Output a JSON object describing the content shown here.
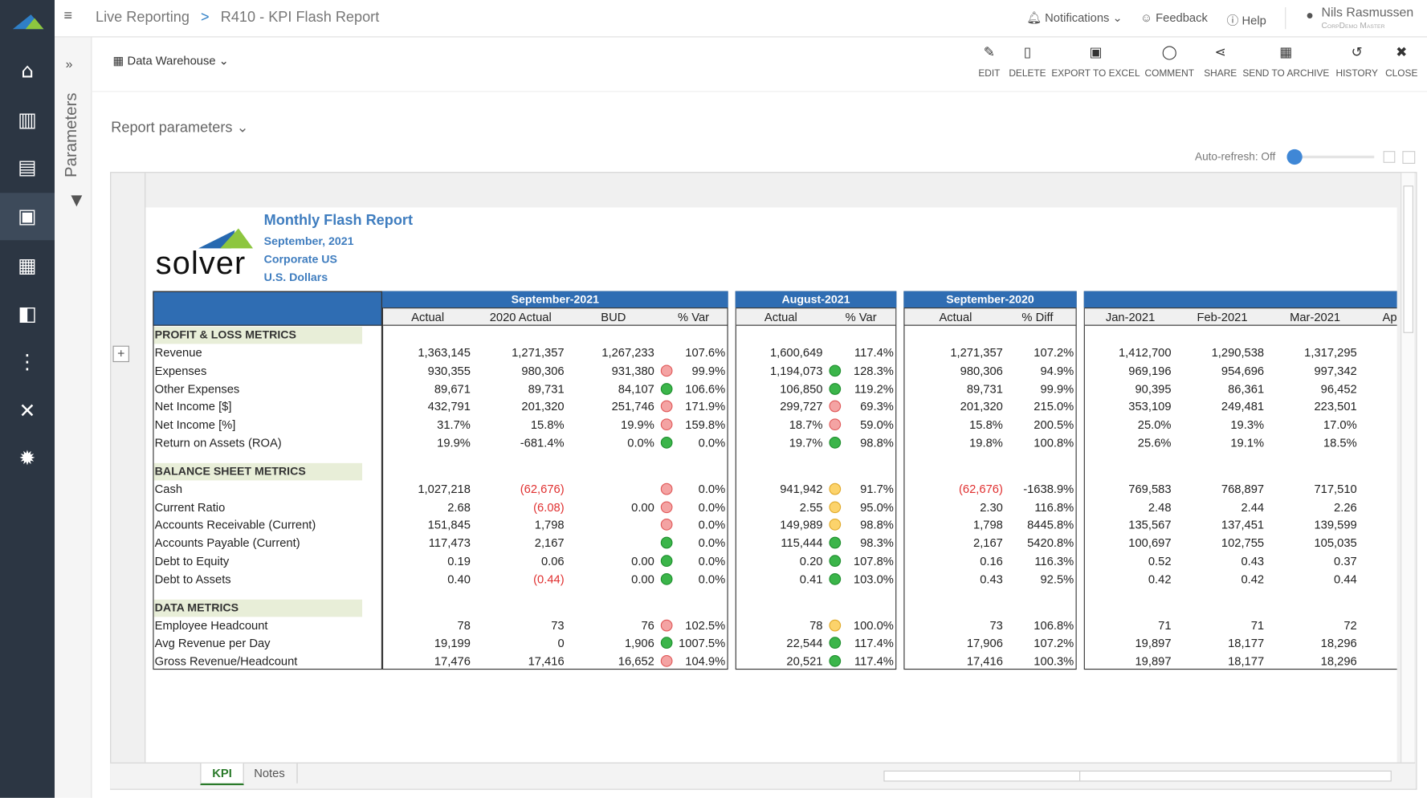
{
  "topbar": {
    "breadcrumb": [
      "Live Reporting",
      "R410 - KPI Flash Report"
    ],
    "separator": ">",
    "notifications": "Notifications",
    "feedback": "Feedback",
    "help": "Help",
    "user": "Nils Rasmussen",
    "user_role": "CorpDemo Master"
  },
  "toolbar": {
    "source": "Data Warehouse",
    "actions": [
      "EDIT",
      "DELETE",
      "EXPORT TO EXCEL",
      "COMMENT",
      "SHARE",
      "SEND TO ARCHIVE",
      "HISTORY",
      "CLOSE"
    ]
  },
  "parameters_panel": "Parameters",
  "report_parameters": "Report parameters",
  "auto_refresh": "Auto-refresh: Off",
  "report": {
    "logo": "solver",
    "title": "Monthly Flash Report",
    "subtitles": [
      "September, 2021",
      "Corporate US",
      "U.S. Dollars"
    ],
    "column_groups": [
      {
        "label": "September-2021",
        "columns": [
          "Actual",
          "2020 Actual",
          "BUD",
          "% Var"
        ]
      },
      {
        "label": "August-2021",
        "columns": [
          "Actual",
          "% Var"
        ]
      },
      {
        "label": "September-2020",
        "columns": [
          "Actual",
          "% Diff"
        ]
      },
      {
        "label": null,
        "columns": [
          "Jan-2021",
          "Feb-2021",
          "Mar-2021",
          "Ap"
        ]
      }
    ],
    "sections": [
      {
        "title": "PROFIT & LOSS METRICS",
        "rows": [
          {
            "label": "Revenue",
            "cells": [
              "1,363,145",
              "1,271,357",
              "1,267,233",
              "107.6%",
              "1,600,649",
              "117.4%",
              "1,271,357",
              "107.2%",
              "1,412,700",
              "1,290,538",
              "1,317,295"
            ],
            "status": [
              null,
              null
            ]
          },
          {
            "label": "Expenses",
            "cells": [
              "930,355",
              "980,306",
              "931,380",
              "99.9%",
              "1,194,073",
              "128.3%",
              "980,306",
              "94.9%",
              "969,196",
              "954,696",
              "997,342"
            ],
            "status": [
              "red",
              "green"
            ]
          },
          {
            "label": "Other Expenses",
            "cells": [
              "89,671",
              "89,731",
              "84,107",
              "106.6%",
              "106,850",
              "119.2%",
              "89,731",
              "99.9%",
              "90,395",
              "86,361",
              "96,452"
            ],
            "status": [
              "green",
              "green"
            ]
          },
          {
            "label": "Net Income [$]",
            "cells": [
              "432,791",
              "201,320",
              "251,746",
              "171.9%",
              "299,727",
              "69.3%",
              "201,320",
              "215.0%",
              "353,109",
              "249,481",
              "223,501"
            ],
            "status": [
              "red",
              "red"
            ]
          },
          {
            "label": "Net Income [%]",
            "cells": [
              "31.7%",
              "15.8%",
              "19.9%",
              "159.8%",
              "18.7%",
              "59.0%",
              "15.8%",
              "200.5%",
              "25.0%",
              "19.3%",
              "17.0%"
            ],
            "status": [
              "red",
              "red"
            ]
          },
          {
            "label": "Return on Assets (ROA)",
            "cells": [
              "19.9%",
              "-681.4%",
              "0.0%",
              "0.0%",
              "19.7%",
              "98.8%",
              "19.8%",
              "100.8%",
              "25.6%",
              "19.1%",
              "18.5%"
            ],
            "status": [
              "green",
              "green"
            ]
          }
        ]
      },
      {
        "title": "BALANCE SHEET METRICS",
        "rows": [
          {
            "label": "Cash",
            "cells": [
              "1,027,218",
              "(62,676)",
              null,
              "0.0%",
              "941,942",
              "91.7%",
              "(62,676)",
              "-1638.9%",
              "769,583",
              "768,897",
              "717,510"
            ],
            "status": [
              "red",
              "yellow"
            ]
          },
          {
            "label": "Current Ratio",
            "cells": [
              "2.68",
              "(6.08)",
              "0.00",
              "0.0%",
              "2.55",
              "95.0%",
              "2.30",
              "116.8%",
              "2.48",
              "2.44",
              "2.26"
            ],
            "status": [
              "red",
              "yellow"
            ]
          },
          {
            "label": "Accounts Receivable (Current)",
            "cells": [
              "151,845",
              "1,798",
              null,
              "0.0%",
              "149,989",
              "98.8%",
              "1,798",
              "8445.8%",
              "135,567",
              "137,451",
              "139,599"
            ],
            "status": [
              "red",
              "yellow"
            ]
          },
          {
            "label": "Accounts Payable (Current)",
            "cells": [
              "117,473",
              "2,167",
              null,
              "0.0%",
              "115,444",
              "98.3%",
              "2,167",
              "5420.8%",
              "100,697",
              "102,755",
              "105,035"
            ],
            "status": [
              "green",
              "green"
            ]
          },
          {
            "label": "Debt to Equity",
            "cells": [
              "0.19",
              "0.06",
              "0.00",
              "0.0%",
              "0.20",
              "107.8%",
              "0.16",
              "116.3%",
              "0.52",
              "0.43",
              "0.37"
            ],
            "status": [
              "green",
              "green"
            ]
          },
          {
            "label": "Debt to Assets",
            "cells": [
              "0.40",
              "(0.44)",
              "0.00",
              "0.0%",
              "0.41",
              "103.0%",
              "0.43",
              "92.5%",
              "0.42",
              "0.42",
              "0.44"
            ],
            "status": [
              "green",
              "green"
            ]
          }
        ]
      },
      {
        "title": "DATA METRICS",
        "rows": [
          {
            "label": "Employee Headcount",
            "cells": [
              "78",
              "73",
              "76",
              "102.5%",
              "78",
              "100.0%",
              "73",
              "106.8%",
              "71",
              "71",
              "72"
            ],
            "status": [
              "red",
              "yellow"
            ]
          },
          {
            "label": "Avg Revenue per Day",
            "cells": [
              "19,199",
              "0",
              "1,906",
              "1007.5%",
              "22,544",
              "117.4%",
              "17,906",
              "107.2%",
              "19,897",
              "18,177",
              "18,296"
            ],
            "status": [
              "green",
              "green"
            ]
          },
          {
            "label": "Gross Revenue/Headcount",
            "cells": [
              "17,476",
              "17,416",
              "16,652",
              "104.9%",
              "20,521",
              "117.4%",
              "17,416",
              "100.3%",
              "19,897",
              "18,177",
              "18,296"
            ],
            "status": [
              "red",
              "green"
            ]
          }
        ]
      }
    ]
  },
  "tabs": [
    "KPI",
    "Notes"
  ]
}
